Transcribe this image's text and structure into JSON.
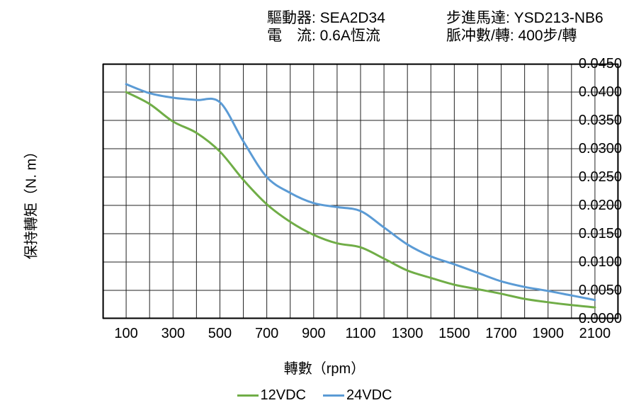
{
  "header": {
    "driver_label": "驅動器: ",
    "driver_value": "SEA2D34",
    "current_label": "電　流: ",
    "current_value": "0.6A恆流",
    "motor_label": "步進馬達: ",
    "motor_value": "YSD213-NB6",
    "pulses_label": "脈冲數/轉: ",
    "pulses_value": "400步/轉"
  },
  "chart_data": {
    "type": "line",
    "title": "",
    "xlabel": "轉數（rpm）",
    "ylabel": "保持轉矩（N. m）",
    "xlim": [
      0,
      2200
    ],
    "ylim": [
      0,
      0.045
    ],
    "x_grid_step": 100,
    "y_grid_step": 0.005,
    "grid": true,
    "legend_position": "bottom",
    "x_ticks": [
      100,
      300,
      500,
      700,
      900,
      1100,
      1300,
      1500,
      1700,
      1900,
      2100
    ],
    "y_ticks": [
      0,
      0.005,
      0.01,
      0.015,
      0.02,
      0.025,
      0.03,
      0.035,
      0.04,
      0.045
    ],
    "y_tick_decimals": 4,
    "x": [
      100,
      200,
      300,
      400,
      500,
      600,
      700,
      800,
      900,
      1000,
      1100,
      1200,
      1300,
      1400,
      1500,
      1600,
      1700,
      1800,
      1900,
      2000,
      2100
    ],
    "series": [
      {
        "name": "12VDC",
        "color": "#70AD47",
        "values": [
          0.04,
          0.0379,
          0.0348,
          0.0328,
          0.0295,
          0.0245,
          0.0202,
          0.0171,
          0.0148,
          0.0133,
          0.0126,
          0.0106,
          0.0085,
          0.0072,
          0.006,
          0.0052,
          0.0044,
          0.0035,
          0.0029,
          0.0024,
          0.002
        ]
      },
      {
        "name": "24VDC",
        "color": "#5B9BD5",
        "values": [
          0.0414,
          0.0398,
          0.039,
          0.0386,
          0.0382,
          0.0313,
          0.025,
          0.0222,
          0.0204,
          0.0197,
          0.019,
          0.0161,
          0.0131,
          0.011,
          0.0096,
          0.0081,
          0.0066,
          0.0056,
          0.0049,
          0.0041,
          0.0033
        ]
      }
    ]
  }
}
